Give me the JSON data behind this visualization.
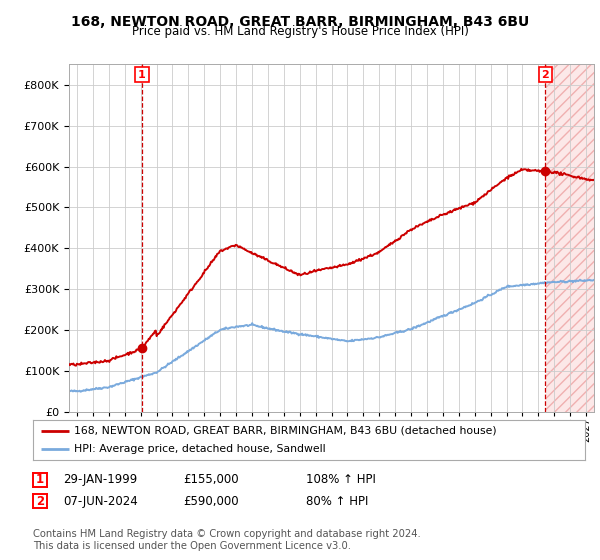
{
  "title1": "168, NEWTON ROAD, GREAT BARR, BIRMINGHAM, B43 6BU",
  "title2": "Price paid vs. HM Land Registry's House Price Index (HPI)",
  "sale1_date": "29-JAN-1999",
  "sale1_price": 155000,
  "sale1_hpi": "108% ↑ HPI",
  "sale2_date": "07-JUN-2024",
  "sale2_price": 590000,
  "sale2_hpi": "80% ↑ HPI",
  "legend_line1": "168, NEWTON ROAD, GREAT BARR, BIRMINGHAM, B43 6BU (detached house)",
  "legend_line2": "HPI: Average price, detached house, Sandwell",
  "footer": "Contains HM Land Registry data © Crown copyright and database right 2024.\nThis data is licensed under the Open Government Licence v3.0.",
  "line_color_red": "#cc0000",
  "line_color_blue": "#7aaadd",
  "background_color": "#ffffff",
  "grid_color": "#cccccc",
  "ylim": [
    0,
    850000
  ],
  "xlim_start": 1994.5,
  "xlim_end": 2027.5,
  "sale1_x": 1999.08,
  "sale2_x": 2024.44
}
